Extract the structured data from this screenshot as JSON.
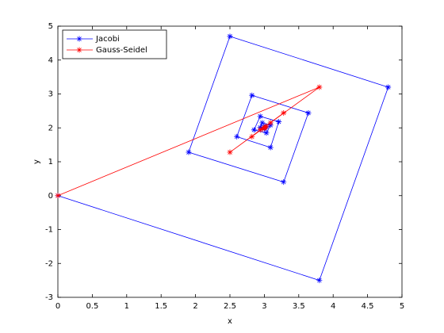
{
  "chart_data": {
    "type": "line",
    "xlabel": "x",
    "ylabel": "y",
    "xlim": [
      0,
      5
    ],
    "ylim": [
      -3,
      5
    ],
    "xticks": [
      0,
      0.5,
      1,
      1.5,
      2,
      2.5,
      3,
      3.5,
      4,
      4.5,
      5
    ],
    "yticks": [
      -3,
      -2,
      -1,
      0,
      1,
      2,
      3,
      4,
      5
    ],
    "legend": "northwest",
    "series": [
      {
        "name": "Jacobi",
        "color": "#0000ff",
        "x": [
          0,
          3.8,
          4.8,
          2.5,
          1.9,
          3.28,
          3.64,
          2.82,
          2.6,
          3.09,
          3.21,
          2.94,
          2.85,
          3.03,
          3.09,
          2.97,
          2.94,
          3.0,
          3.02,
          2.99,
          3.0
        ],
        "values": [
          0,
          -2.5,
          3.2,
          4.7,
          1.28,
          0.4,
          2.44,
          2.96,
          1.74,
          1.42,
          2.18,
          2.34,
          1.94,
          1.85,
          2.08,
          2.15,
          2.01,
          1.97,
          2.03,
          2.02,
          2.0
        ]
      },
      {
        "name": "Gauss-Seidel",
        "color": "#ff0000",
        "x": [
          0,
          3.8,
          2.5,
          3.28,
          2.82,
          3.09,
          2.94,
          3.03,
          2.98,
          3.01,
          3.0
        ],
        "values": [
          0,
          3.2,
          1.28,
          2.44,
          1.74,
          2.15,
          1.94,
          2.05,
          1.98,
          2.01,
          2.0
        ]
      }
    ]
  }
}
